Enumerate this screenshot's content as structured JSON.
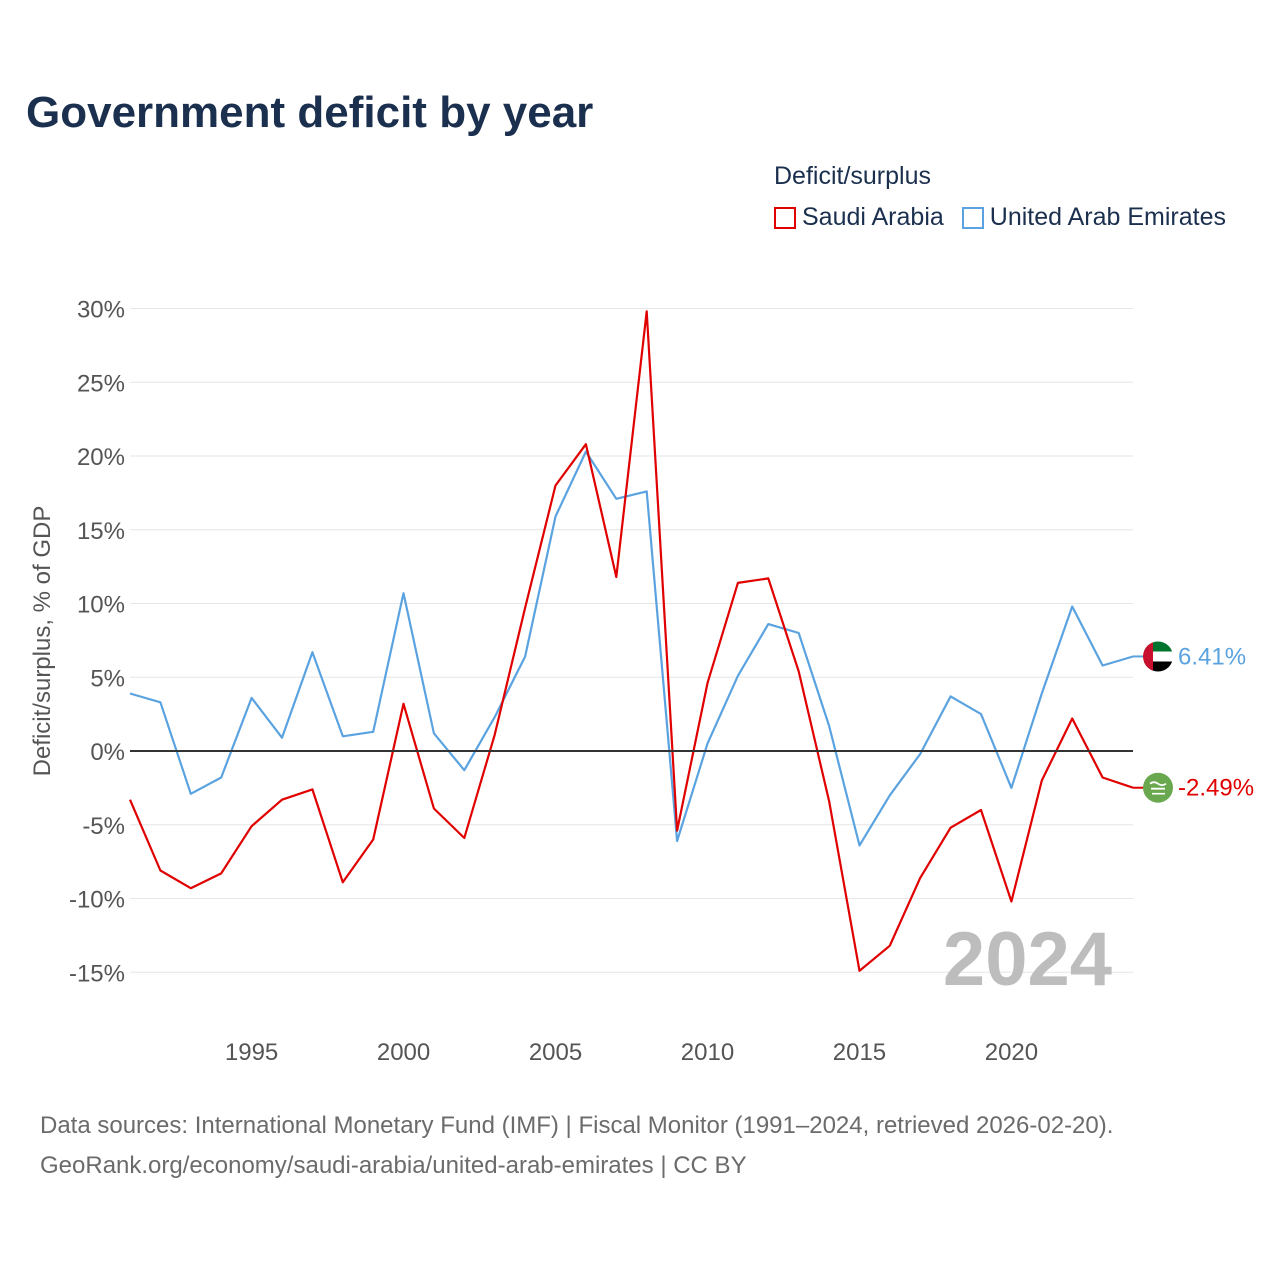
{
  "title": "Government deficit by year",
  "legend": {
    "title": "Deficit/surplus",
    "items": [
      "Saudi Arabia",
      "United Arab Emirates"
    ]
  },
  "colors": {
    "saudi": "#e00000",
    "uae": "#5aa3e0",
    "zero_line": "#333333",
    "grid": "#e6e6e6",
    "tick_text": "#555555",
    "year_watermark": "#bdbdbd"
  },
  "year_label": "2024",
  "end_labels": {
    "uae": "6.41%",
    "saudi": "-2.49%"
  },
  "source": {
    "line1": "Data sources: International Monetary Fund (IMF) | Fiscal Monitor (1991–2024, retrieved 2026-02-20).",
    "line2": "GeoRank.org/economy/saudi-arabia/united-arab-emirates | CC BY"
  },
  "chart_data": {
    "type": "line",
    "title": "Government deficit by year",
    "xlabel": "",
    "ylabel": "Deficit/surplus, % of GDP",
    "xlim": [
      1991,
      2024
    ],
    "ylim": [
      -17,
      30
    ],
    "yticks": [
      30,
      25,
      20,
      15,
      10,
      5,
      0,
      -5,
      -10,
      -15
    ],
    "ytick_labels": [
      "30%",
      "25%",
      "20%",
      "15%",
      "10%",
      "5%",
      "0%",
      "-5%",
      "-10%",
      "-15%"
    ],
    "xticks": [
      1995,
      2000,
      2005,
      2010,
      2015,
      2020
    ],
    "xtick_labels": [
      "1995",
      "2000",
      "2005",
      "2010",
      "2015",
      "2020"
    ],
    "x": [
      1991,
      1992,
      1993,
      1994,
      1995,
      1996,
      1997,
      1998,
      1999,
      2000,
      2001,
      2002,
      2003,
      2004,
      2005,
      2006,
      2007,
      2008,
      2009,
      2010,
      2011,
      2012,
      2013,
      2014,
      2015,
      2016,
      2017,
      2018,
      2019,
      2020,
      2021,
      2022,
      2023,
      2024
    ],
    "series": [
      {
        "name": "Saudi Arabia",
        "values": [
          -3.3,
          -8.1,
          -9.3,
          -8.3,
          -5.1,
          -3.3,
          -2.6,
          -8.9,
          -6.0,
          3.2,
          -3.9,
          -5.9,
          1.1,
          9.7,
          18.0,
          20.8,
          11.8,
          29.8,
          -5.4,
          4.6,
          11.4,
          11.7,
          5.4,
          -3.4,
          -14.9,
          -13.2,
          -8.6,
          -5.2,
          -4.0,
          -10.2,
          -2.0,
          2.2,
          -1.8,
          -2.49
        ]
      },
      {
        "name": "United Arab Emirates",
        "values": [
          3.9,
          3.3,
          -2.9,
          -1.8,
          3.6,
          0.9,
          6.7,
          1.0,
          1.3,
          10.7,
          1.2,
          -1.3,
          2.3,
          6.4,
          15.9,
          20.3,
          17.1,
          17.6,
          -6.1,
          0.5,
          5.1,
          8.6,
          8.0,
          1.7,
          -6.4,
          -3.0,
          -0.2,
          3.7,
          2.5,
          -2.5,
          3.9,
          9.8,
          5.8,
          6.41
        ]
      }
    ]
  }
}
